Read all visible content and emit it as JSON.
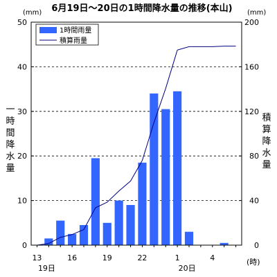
{
  "chart_data": {
    "type": "bar",
    "title": "6月19日～20日の1時間降水量の推移(本山)",
    "y_left_unit": "(mm)",
    "y_right_unit": "(mm)",
    "y_left_label": "一時間降水量",
    "y_right_label": "積算降水量",
    "x_unit": "(時)",
    "ylim_left": [
      0,
      50
    ],
    "ylim_right": [
      0,
      200
    ],
    "y_left_ticks": [
      "0",
      "10",
      "20",
      "30",
      "40",
      "50"
    ],
    "y_right_ticks": [
      "0",
      "40",
      "80",
      "120",
      "160",
      "200"
    ],
    "x_tick_labels": [
      {
        "hour": 13,
        "text": "13"
      },
      {
        "hour": 16,
        "text": "16"
      },
      {
        "hour": 19,
        "text": "19"
      },
      {
        "hour": 22,
        "text": "22"
      },
      {
        "hour": 1,
        "text": "1"
      },
      {
        "hour": 4,
        "text": "4"
      }
    ],
    "date_labels": [
      {
        "hour": 13,
        "text": "19日"
      },
      {
        "hour": 1,
        "text": "20日"
      }
    ],
    "grid": "horizontal dashed",
    "legend_position": "top-left",
    "categories": [
      "13",
      "14",
      "15",
      "16",
      "17",
      "18",
      "19",
      "20",
      "21",
      "22",
      "23",
      "24",
      "1",
      "2",
      "3",
      "4",
      "5",
      "6"
    ],
    "series": [
      {
        "name": "1時間雨量",
        "type": "bar",
        "axis": "left",
        "color": "#3366ff",
        "values": [
          0,
          1.5,
          5.5,
          2.5,
          4.5,
          19.5,
          5,
          10,
          9,
          18.5,
          34,
          30.5,
          34.5,
          3,
          0,
          0,
          0.5,
          0
        ]
      },
      {
        "name": "積算雨量",
        "type": "line",
        "axis": "right",
        "color": "#000080",
        "values": [
          0,
          1.5,
          7,
          9.5,
          14,
          33.5,
          38.5,
          48.5,
          57.5,
          76,
          110,
          140.5,
          175,
          178,
          178,
          178,
          178.5,
          178.5
        ]
      }
    ]
  }
}
